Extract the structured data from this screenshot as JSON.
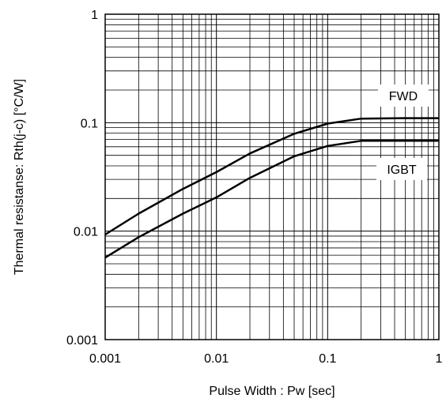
{
  "chart_data": {
    "type": "line",
    "x_scale": "log",
    "y_scale": "log",
    "xlim": [
      0.001,
      1
    ],
    "ylim": [
      0.001,
      1
    ],
    "grid": true,
    "xlabel": "Pulse Width : Pw [sec]",
    "ylabel": "Thermal resistanse: Rth(j-c) [°C/W]",
    "x_ticks": [
      "0.001",
      "0.01",
      "0.1",
      "1"
    ],
    "y_ticks": [
      "0.001",
      "0.01",
      "0.1",
      "1"
    ],
    "series": [
      {
        "name": "FWD",
        "color": "#000000",
        "x": [
          0.001,
          0.002,
          0.005,
          0.01,
          0.02,
          0.05,
          0.1,
          0.2,
          0.5,
          1
        ],
        "y": [
          0.0093,
          0.0145,
          0.0245,
          0.035,
          0.052,
          0.079,
          0.098,
          0.109,
          0.11,
          0.11
        ]
      },
      {
        "name": "IGBT",
        "color": "#000000",
        "x": [
          0.001,
          0.002,
          0.005,
          0.01,
          0.02,
          0.05,
          0.1,
          0.2,
          0.5,
          1
        ],
        "y": [
          0.0057,
          0.0088,
          0.0145,
          0.0205,
          0.031,
          0.049,
          0.061,
          0.068,
          0.068,
          0.068
        ]
      }
    ]
  }
}
